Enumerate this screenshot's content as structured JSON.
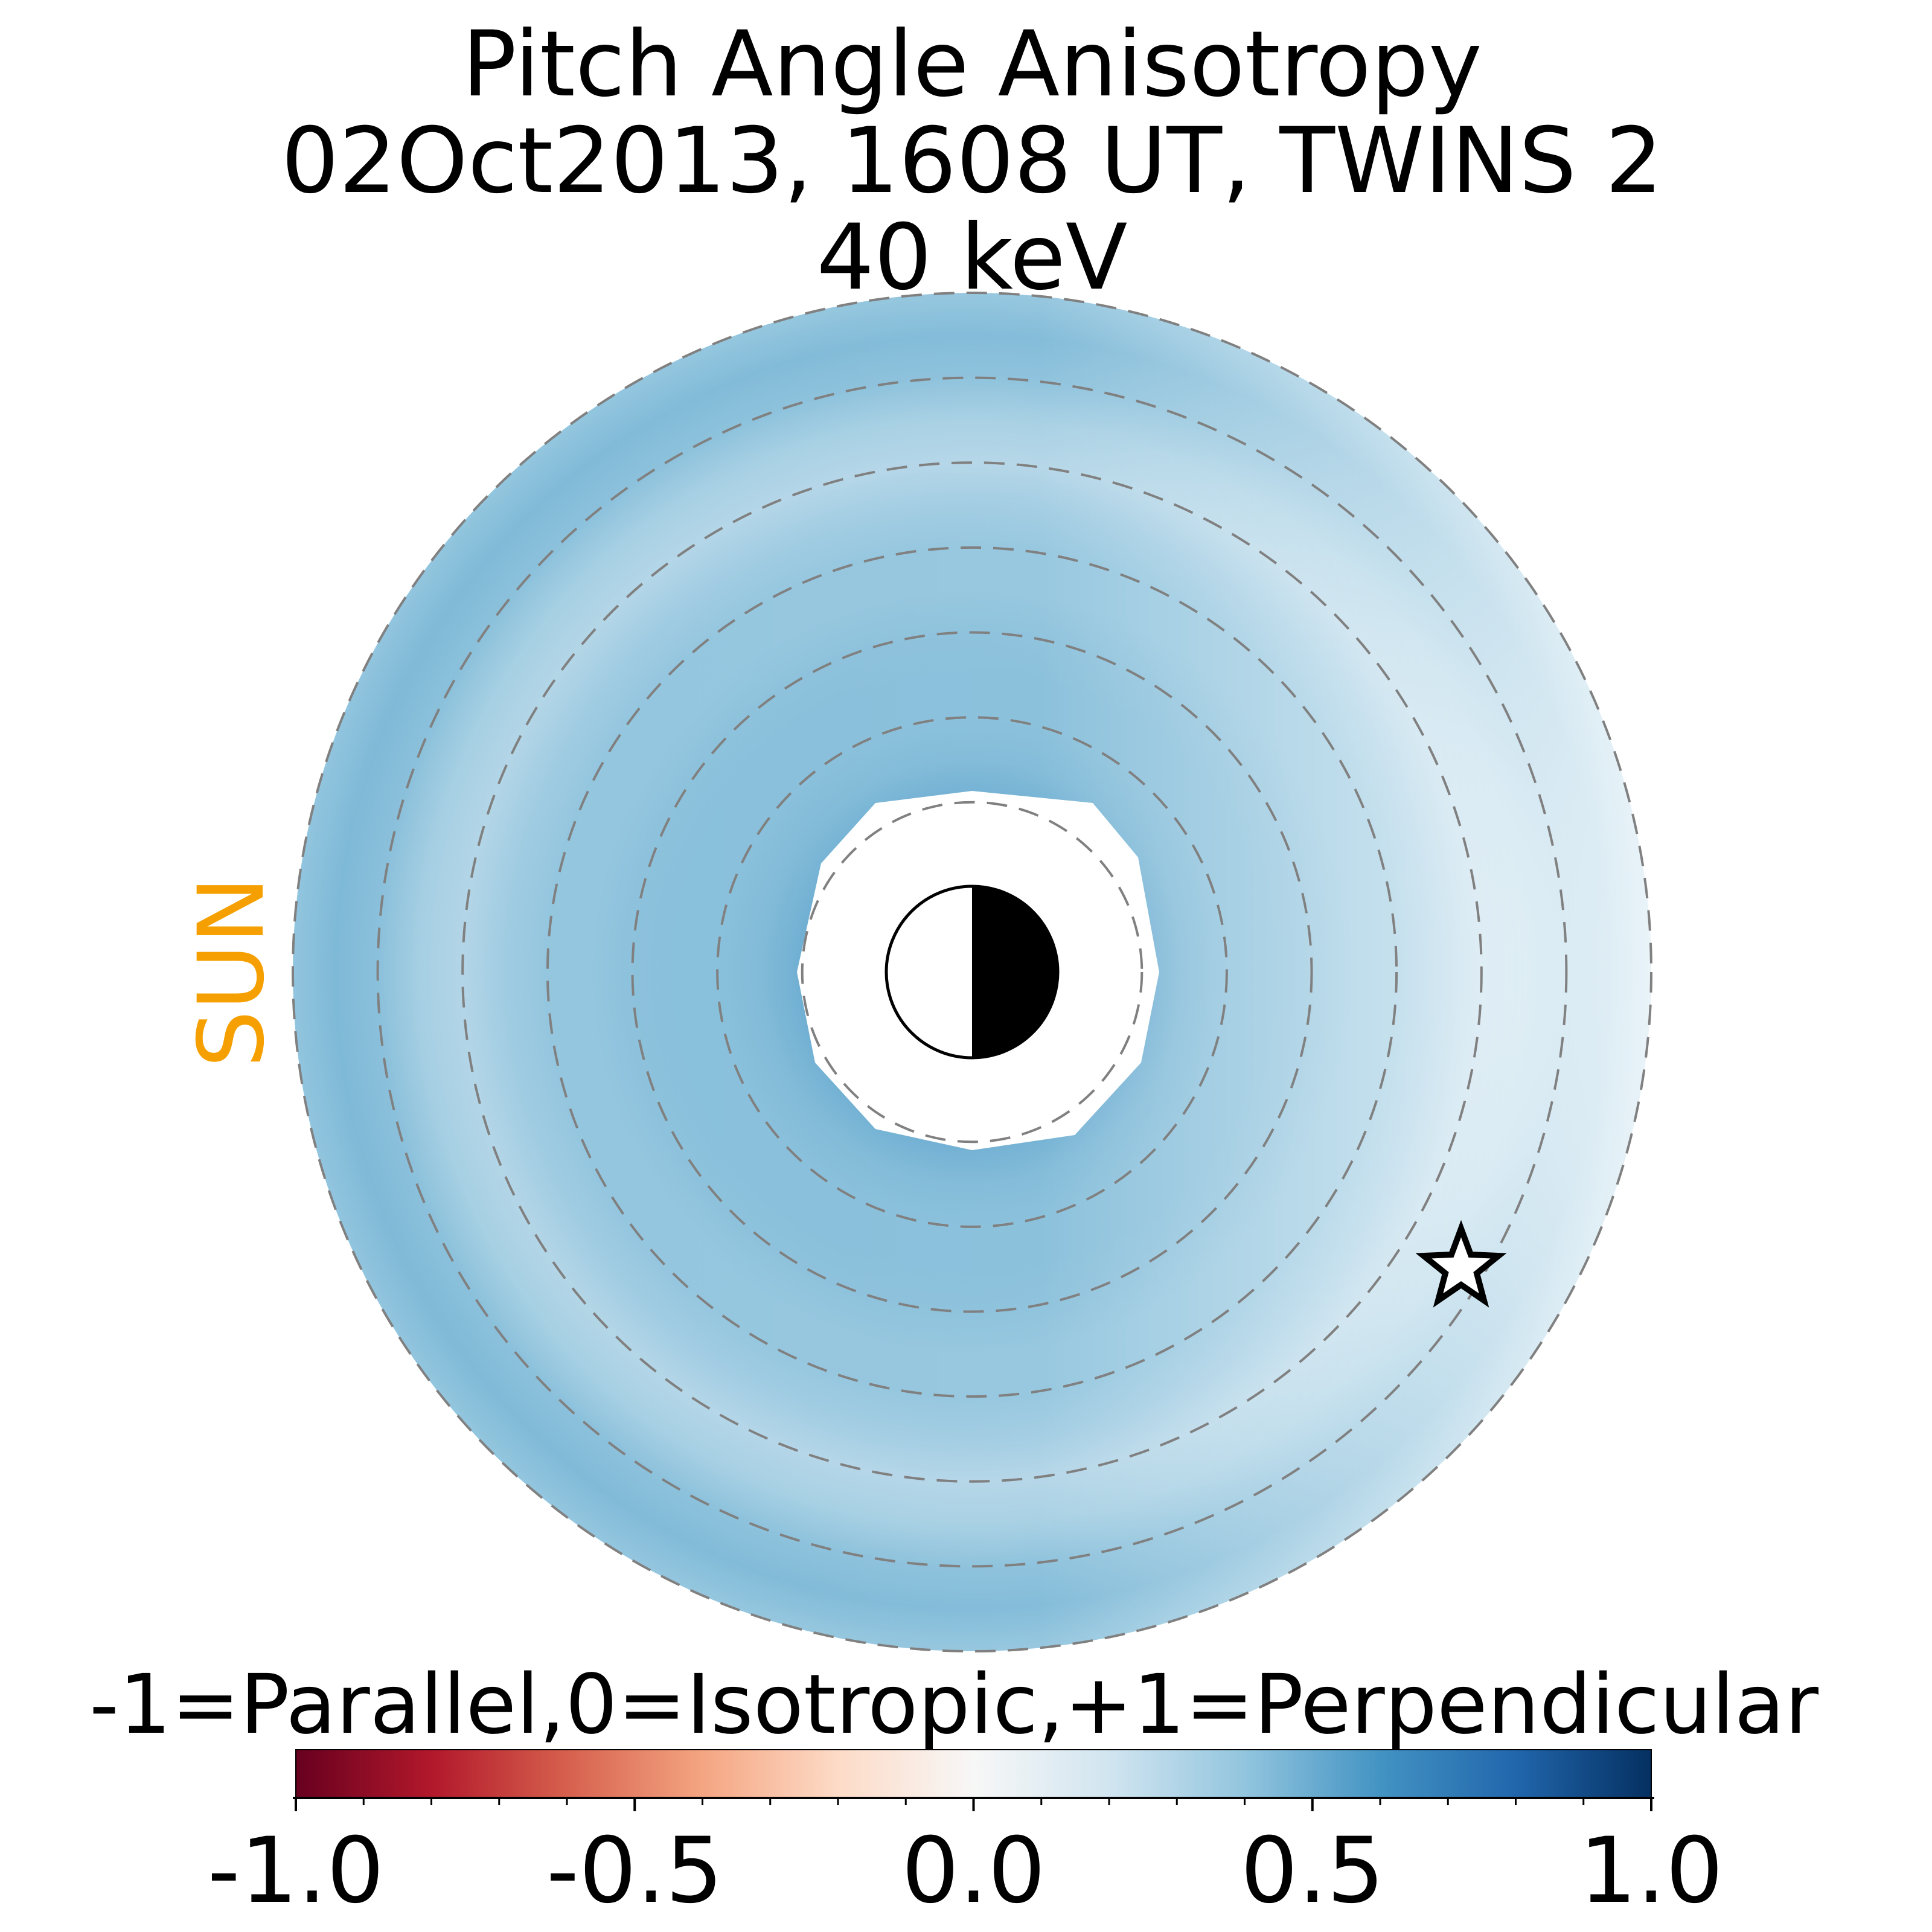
{
  "chart_data": {
    "type": "heatmap",
    "title_lines": [
      "Pitch Angle Anisotropy",
      "02Oct2013, 1608 UT,  TWINS 2",
      "40 keV"
    ],
    "sun_label": "SUN",
    "colorbar": {
      "label": "-1=Parallel,0=Isotropic,+1=Perpendicular",
      "range": [
        -1.0,
        1.0
      ],
      "tick_values": [
        -1.0,
        -0.5,
        0.0,
        0.5,
        1.0
      ],
      "tick_labels": [
        "-1.0",
        "-0.5",
        "0.0",
        "0.5",
        "1.0"
      ],
      "colormap": "RdBu"
    },
    "map": {
      "projection": "equatorial polar",
      "inner_radius": 2,
      "outer_radius": 8,
      "grid_circles": [
        2,
        3,
        4,
        5,
        6,
        7,
        8
      ],
      "anisotropy_by_radius": [
        {
          "r": 2.0,
          "value": 0.5
        },
        {
          "r": 2.5,
          "value": 0.45
        },
        {
          "r": 3.0,
          "value": 0.43
        },
        {
          "r": 3.5,
          "value": 0.43
        },
        {
          "r": 4.0,
          "value": 0.42
        },
        {
          "r": 4.5,
          "value": 0.4
        },
        {
          "r": 5.0,
          "value": 0.4
        },
        {
          "r": 5.5,
          "value": 0.36
        },
        {
          "r": 6.0,
          "value": 0.3
        },
        {
          "r": 6.5,
          "value": 0.34
        },
        {
          "r": 7.0,
          "value": 0.42
        },
        {
          "r": 7.5,
          "value": 0.45
        },
        {
          "r": 8.0,
          "value": 0.4
        }
      ],
      "dayside_nightside_trend": "values higher on the sunward (left) side, near 0.1 on the far night side (right)",
      "spacecraft_marker": "star"
    }
  }
}
